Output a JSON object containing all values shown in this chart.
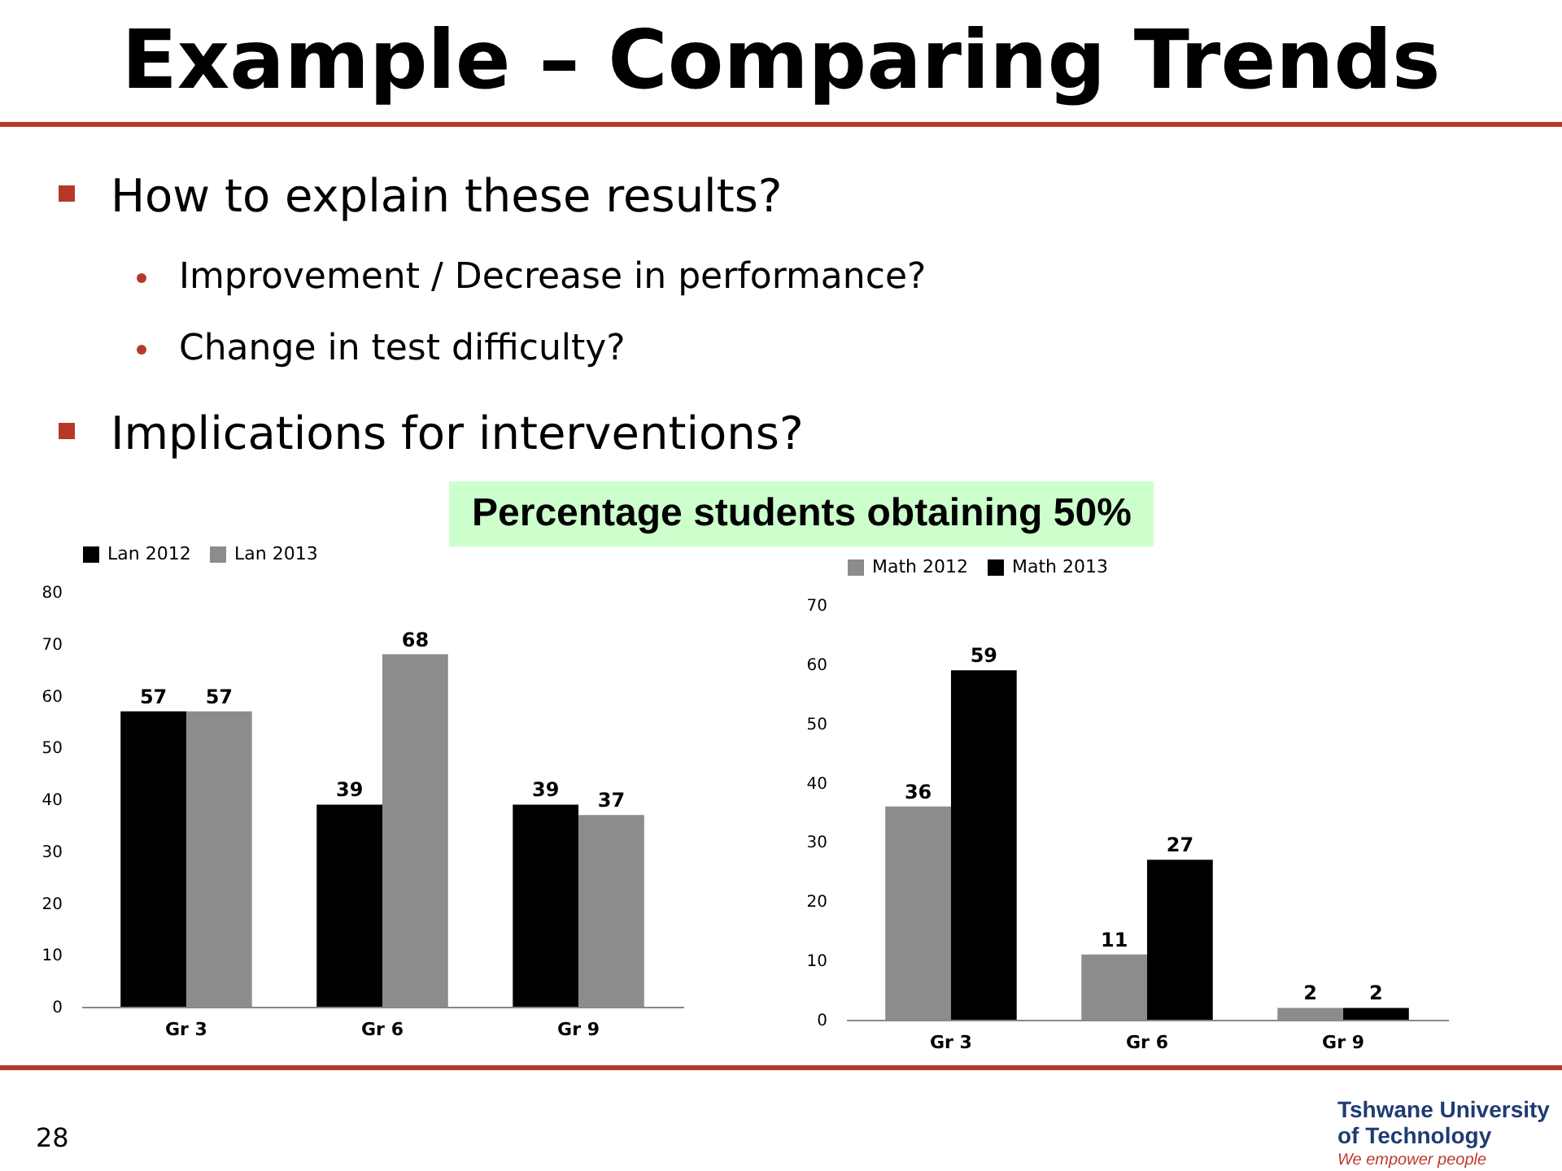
{
  "chart_data": [
    {
      "type": "bar",
      "title": "Example – Comparing Trends",
      "annotations": [
        "How to explain these results?",
        "Improvement / Decrease in performance?",
        "Change in test difficulty?",
        "Implications for interventions?",
        "Percentage students obtaining 50%",
        "28",
        "Tshwane University of Technology",
        "We empower people"
      ],
      "categories": [
        "Gr 3",
        "Gr 6",
        "Gr 9"
      ],
      "series": [
        {
          "name": "Lan 2012",
          "color": "#000000",
          "values": [
            57,
            39,
            39
          ]
        },
        {
          "name": "Lan 2013",
          "color": "#8c8c8c",
          "values": [
            57,
            68,
            37
          ]
        }
      ],
      "ylim": [
        0,
        80
      ],
      "yticks": [
        0,
        10,
        20,
        30,
        40,
        50,
        60,
        70,
        80
      ],
      "data_labels": true,
      "legend": "top",
      "grid": false
    },
    {
      "type": "bar",
      "categories": [
        "Gr 3",
        "Gr 6",
        "Gr 9"
      ],
      "series": [
        {
          "name": "Math 2012",
          "color": "#8c8c8c",
          "values": [
            36,
            11,
            2
          ]
        },
        {
          "name": "Math 2013",
          "color": "#000000",
          "values": [
            59,
            27,
            2
          ]
        }
      ],
      "ylim": [
        0,
        70
      ],
      "yticks": [
        0,
        10,
        20,
        30,
        40,
        50,
        60,
        70
      ],
      "data_labels": true,
      "legend": "top",
      "grid": false
    }
  ]
}
